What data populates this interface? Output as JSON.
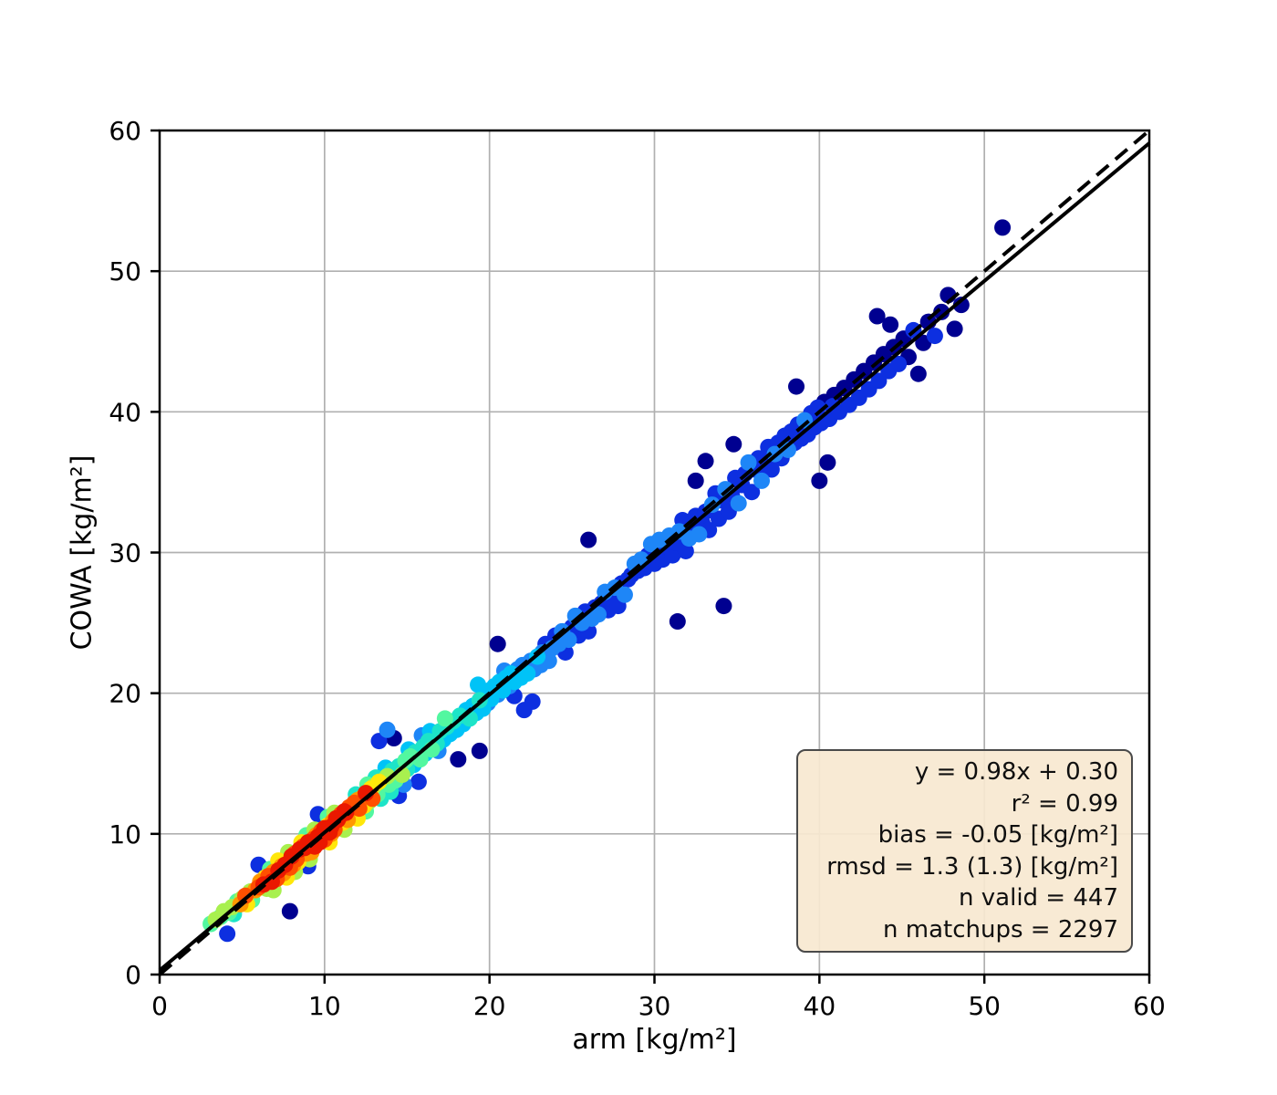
{
  "figure": {
    "title": "",
    "xlabel": "arm [kg/m²]",
    "ylabel": "COWA [kg/m²]"
  },
  "stats_box": {
    "lines": [
      "y = 0.98x + 0.30",
      "r² = 0.99",
      "bias = -0.05 [kg/m²]",
      "rmsd = 1.3 (1.3) [kg/m²]",
      "n valid = 447",
      "n matchups = 2297"
    ],
    "values": {
      "slope": 0.98,
      "intercept": 0.3,
      "r2": 0.99,
      "bias": -0.05,
      "rmsd": "1.3 (1.3)",
      "n_valid": 447,
      "n_matchups": 2297
    },
    "background": "#f5deb3",
    "border_color": "#4a4a4a"
  },
  "chart_data": {
    "type": "scatter",
    "title": "",
    "xlabel": "arm [kg/m²]",
    "ylabel": "COWA [kg/m²]",
    "xlim": [
      0,
      60
    ],
    "ylim": [
      0,
      60
    ],
    "xticks": [
      0,
      10,
      20,
      30,
      40,
      50,
      60
    ],
    "yticks": [
      0,
      10,
      20,
      30,
      40,
      50,
      60
    ],
    "grid": true,
    "grid_color": "#b0b0b0",
    "identity_line": {
      "style": "dashed",
      "color": "#000000",
      "from": [
        0,
        0
      ],
      "to": [
        60,
        60
      ]
    },
    "regression_line": {
      "style": "solid",
      "color": "#000000",
      "slope": 0.98,
      "intercept": 0.3
    },
    "color_meaning": "point color = matchup density, jet colormap (red = high density, dark blue = low density)",
    "palette": [
      "#000090",
      "#0d2fe0",
      "#1e86f7",
      "#00c3f7",
      "#1de4c8",
      "#52f7a0",
      "#a8f04f",
      "#ffe70a",
      "#ff9800",
      "#ff5000",
      "#ea1800"
    ],
    "points": [
      [
        3.1,
        3.6,
        5
      ],
      [
        3.4,
        3.9,
        6
      ],
      [
        3.7,
        4.1,
        5
      ],
      [
        3.9,
        4.5,
        6
      ],
      [
        4.1,
        2.9,
        1
      ],
      [
        4.2,
        4.4,
        5
      ],
      [
        4.4,
        4.8,
        6
      ],
      [
        4.5,
        4.3,
        4
      ],
      [
        4.7,
        5.2,
        5
      ],
      [
        4.9,
        5.0,
        8
      ],
      [
        5.0,
        5.4,
        6
      ],
      [
        5.2,
        5.6,
        9
      ],
      [
        5.3,
        5.0,
        7
      ],
      [
        5.5,
        5.9,
        6
      ],
      [
        5.6,
        5.3,
        5
      ],
      [
        5.8,
        6.0,
        8
      ],
      [
        6.0,
        7.8,
        1
      ],
      [
        6.0,
        6.2,
        9
      ],
      [
        6.1,
        6.6,
        8
      ],
      [
        6.3,
        6.4,
        10
      ],
      [
        6.4,
        6.9,
        7
      ],
      [
        6.5,
        6.1,
        6
      ],
      [
        6.6,
        7.0,
        9
      ],
      [
        6.7,
        7.5,
        5
      ],
      [
        6.8,
        6.6,
        10
      ],
      [
        6.9,
        6.0,
        6
      ],
      [
        6.9,
        7.3,
        8
      ],
      [
        7.0,
        7.6,
        5
      ],
      [
        7.1,
        6.8,
        9
      ],
      [
        7.2,
        7.4,
        10
      ],
      [
        7.2,
        8.1,
        7
      ],
      [
        7.3,
        7.9,
        7
      ],
      [
        7.4,
        7.7,
        8
      ],
      [
        7.5,
        7.2,
        8
      ],
      [
        7.6,
        7.8,
        10
      ],
      [
        7.7,
        6.9,
        7
      ],
      [
        7.7,
        8.3,
        6
      ],
      [
        7.8,
        8.7,
        6
      ],
      [
        7.9,
        4.5,
        0
      ],
      [
        7.9,
        7.6,
        9
      ],
      [
        8.0,
        8.4,
        10
      ],
      [
        8.1,
        7.8,
        8
      ],
      [
        8.2,
        7.3,
        6
      ],
      [
        8.2,
        8.6,
        9
      ],
      [
        8.3,
        8.2,
        9
      ],
      [
        8.4,
        8.0,
        7
      ],
      [
        8.5,
        8.9,
        10
      ],
      [
        8.6,
        8.3,
        5
      ],
      [
        8.6,
        9.4,
        7
      ],
      [
        8.7,
        9.1,
        9
      ],
      [
        8.8,
        9.0,
        10
      ],
      [
        8.9,
        8.6,
        8
      ],
      [
        8.9,
        9.9,
        5
      ],
      [
        9.0,
        7.7,
        1
      ],
      [
        9.0,
        9.4,
        10
      ],
      [
        9.1,
        8.2,
        6
      ],
      [
        9.1,
        8.9,
        7
      ],
      [
        9.2,
        8.7,
        8
      ],
      [
        9.2,
        9.3,
        10
      ],
      [
        9.3,
        9.6,
        9
      ],
      [
        9.4,
        9.1,
        10
      ],
      [
        9.4,
        10.3,
        6
      ],
      [
        9.5,
        9.9,
        8
      ],
      [
        9.6,
        9.8,
        10
      ],
      [
        9.6,
        11.4,
        1
      ],
      [
        9.7,
        9.4,
        10
      ],
      [
        9.8,
        10.2,
        9
      ],
      [
        9.9,
        9.7,
        6
      ],
      [
        9.9,
        10.1,
        10
      ],
      [
        10.0,
        9.6,
        9
      ],
      [
        10.0,
        10.4,
        10
      ],
      [
        10.1,
        9.9,
        9
      ],
      [
        10.2,
        10.6,
        7
      ],
      [
        10.2,
        11.2,
        5
      ],
      [
        10.3,
        9.4,
        7
      ],
      [
        10.3,
        10.1,
        10
      ],
      [
        10.4,
        10.0,
        8
      ],
      [
        10.4,
        10.5,
        10
      ],
      [
        10.5,
        10.9,
        8
      ],
      [
        10.6,
        10.3,
        9
      ],
      [
        10.6,
        11.5,
        6
      ],
      [
        10.7,
        11.1,
        10
      ],
      [
        10.8,
        11.0,
        10
      ],
      [
        10.9,
        10.6,
        5
      ],
      [
        10.9,
        11.2,
        9
      ],
      [
        11.0,
        11.4,
        9
      ],
      [
        11.1,
        10.8,
        7
      ],
      [
        11.2,
        10.3,
        6
      ],
      [
        11.2,
        11.6,
        10
      ],
      [
        11.3,
        11.5,
        10
      ],
      [
        11.4,
        11.0,
        8
      ],
      [
        11.5,
        11.9,
        9
      ],
      [
        11.6,
        11.3,
        6
      ],
      [
        11.7,
        11.9,
        8
      ],
      [
        11.8,
        12.2,
        9
      ],
      [
        11.9,
        11.5,
        7
      ],
      [
        11.9,
        12.8,
        4
      ],
      [
        12.0,
        11.1,
        7
      ],
      [
        12.0,
        12.4,
        8
      ],
      [
        12.1,
        11.8,
        9
      ],
      [
        12.2,
        12.5,
        8
      ],
      [
        12.3,
        12.6,
        6
      ],
      [
        12.4,
        12.0,
        7
      ],
      [
        12.5,
        11.6,
        5
      ],
      [
        12.5,
        12.9,
        10
      ],
      [
        12.6,
        13.5,
        5
      ],
      [
        12.7,
        12.3,
        6
      ],
      [
        12.8,
        13.2,
        7
      ],
      [
        12.9,
        12.5,
        9
      ],
      [
        13.0,
        13.4,
        6
      ],
      [
        13.1,
        14.0,
        4
      ],
      [
        13.2,
        12.8,
        5
      ],
      [
        13.3,
        13.7,
        7
      ],
      [
        13.3,
        16.6,
        1
      ],
      [
        13.4,
        12.5,
        4
      ],
      [
        13.6,
        13.1,
        4
      ],
      [
        13.7,
        14.7,
        3
      ],
      [
        13.8,
        14.1,
        6
      ],
      [
        13.8,
        17.4,
        2
      ],
      [
        13.9,
        13.5,
        5
      ],
      [
        14.0,
        13.0,
        4
      ],
      [
        14.1,
        14.5,
        4
      ],
      [
        14.2,
        16.8,
        0
      ],
      [
        14.3,
        13.8,
        5
      ],
      [
        14.5,
        12.7,
        1
      ],
      [
        14.5,
        14.8,
        4
      ],
      [
        14.7,
        14.2,
        6
      ],
      [
        14.8,
        13.5,
        2
      ],
      [
        14.9,
        15.2,
        5
      ],
      [
        15.0,
        14.6,
        4
      ],
      [
        15.1,
        16.0,
        3
      ],
      [
        15.2,
        15.5,
        5
      ],
      [
        15.4,
        14.9,
        3
      ],
      [
        15.5,
        15.8,
        4
      ],
      [
        15.7,
        13.7,
        1
      ],
      [
        15.8,
        15.3,
        5
      ],
      [
        15.9,
        17.0,
        2
      ],
      [
        16.0,
        16.2,
        4
      ],
      [
        16.1,
        15.7,
        3
      ],
      [
        16.3,
        16.6,
        4
      ],
      [
        16.4,
        17.3,
        3
      ],
      [
        16.5,
        16.0,
        5
      ],
      [
        16.7,
        16.9,
        3
      ],
      [
        16.8,
        16.4,
        4
      ],
      [
        16.9,
        15.9,
        2
      ],
      [
        17.0,
        17.3,
        4
      ],
      [
        17.2,
        16.7,
        3
      ],
      [
        17.3,
        18.2,
        5
      ],
      [
        17.4,
        17.6,
        4
      ],
      [
        17.6,
        17.1,
        3
      ],
      [
        17.8,
        18.0,
        4
      ],
      [
        18.0,
        17.4,
        3
      ],
      [
        18.1,
        15.3,
        0
      ],
      [
        18.2,
        18.4,
        4
      ],
      [
        18.4,
        17.8,
        3
      ],
      [
        18.6,
        18.8,
        3
      ],
      [
        18.8,
        18.2,
        4
      ],
      [
        19.0,
        19.1,
        3
      ],
      [
        19.2,
        18.6,
        3
      ],
      [
        19.3,
        20.6,
        3
      ],
      [
        19.4,
        15.9,
        0
      ],
      [
        19.4,
        19.5,
        4
      ],
      [
        19.6,
        18.9,
        3
      ],
      [
        19.8,
        19.9,
        3
      ],
      [
        19.9,
        19.3,
        2
      ],
      [
        20.0,
        20.2,
        3
      ],
      [
        20.1,
        19.6,
        3
      ],
      [
        20.3,
        20.5,
        3
      ],
      [
        20.5,
        19.9,
        2
      ],
      [
        20.5,
        23.5,
        0
      ],
      [
        20.6,
        20.8,
        3
      ],
      [
        20.8,
        20.2,
        3
      ],
      [
        20.9,
        21.6,
        2
      ],
      [
        21.0,
        21.1,
        3
      ],
      [
        21.2,
        20.5,
        2
      ],
      [
        21.3,
        21.4,
        3
      ],
      [
        21.5,
        19.8,
        1
      ],
      [
        21.5,
        20.8,
        3
      ],
      [
        21.7,
        21.7,
        2
      ],
      [
        21.9,
        21.1,
        3
      ],
      [
        22.0,
        22.0,
        2
      ],
      [
        22.1,
        18.8,
        1
      ],
      [
        22.3,
        21.4,
        3
      ],
      [
        22.5,
        22.3,
        2
      ],
      [
        22.6,
        19.4,
        1
      ],
      [
        22.7,
        21.7,
        2
      ],
      [
        22.9,
        22.6,
        3
      ],
      [
        23.1,
        22.0,
        2
      ],
      [
        23.2,
        22.9,
        2
      ],
      [
        23.4,
        23.5,
        1
      ],
      [
        23.6,
        22.3,
        2
      ],
      [
        23.8,
        23.2,
        2
      ],
      [
        24.0,
        24.1,
        1
      ],
      [
        24.2,
        23.5,
        2
      ],
      [
        24.4,
        24.4,
        2
      ],
      [
        24.6,
        22.9,
        1
      ],
      [
        24.8,
        23.8,
        2
      ],
      [
        25.0,
        24.7,
        1
      ],
      [
        25.2,
        25.5,
        2
      ],
      [
        25.4,
        24.1,
        1
      ],
      [
        25.6,
        25.0,
        2
      ],
      [
        25.8,
        25.8,
        1
      ],
      [
        26.0,
        24.4,
        1
      ],
      [
        26.0,
        30.9,
        0
      ],
      [
        26.2,
        25.3,
        2
      ],
      [
        26.4,
        26.1,
        1
      ],
      [
        26.6,
        25.6,
        2
      ],
      [
        26.8,
        26.4,
        1
      ],
      [
        27.0,
        27.2,
        2
      ],
      [
        27.2,
        25.9,
        1
      ],
      [
        27.4,
        26.7,
        1
      ],
      [
        27.6,
        27.5,
        2
      ],
      [
        27.8,
        26.2,
        1
      ],
      [
        28.0,
        27.8,
        1
      ],
      [
        28.2,
        27.0,
        2
      ],
      [
        28.4,
        28.1,
        1
      ],
      [
        28.6,
        28.4,
        1
      ],
      [
        28.8,
        29.2,
        2
      ],
      [
        29.0,
        28.7,
        1
      ],
      [
        29.2,
        29.5,
        2
      ],
      [
        29.4,
        28.9,
        1
      ],
      [
        29.6,
        29.8,
        1
      ],
      [
        29.8,
        30.6,
        2
      ],
      [
        30.0,
        29.2,
        1
      ],
      [
        30.1,
        30.1,
        1
      ],
      [
        30.3,
        30.9,
        2
      ],
      [
        30.5,
        29.5,
        1
      ],
      [
        30.7,
        30.4,
        1
      ],
      [
        30.9,
        31.2,
        2
      ],
      [
        31.1,
        29.8,
        1
      ],
      [
        31.3,
        30.7,
        1
      ],
      [
        31.4,
        25.1,
        0
      ],
      [
        31.5,
        31.5,
        2
      ],
      [
        31.7,
        32.3,
        1
      ],
      [
        31.9,
        30.1,
        1
      ],
      [
        32.1,
        31.0,
        2
      ],
      [
        32.3,
        31.8,
        1
      ],
      [
        32.5,
        32.6,
        1
      ],
      [
        32.5,
        35.1,
        0
      ],
      [
        32.7,
        31.3,
        2
      ],
      [
        32.9,
        32.1,
        1
      ],
      [
        33.1,
        32.9,
        1
      ],
      [
        33.1,
        36.5,
        0
      ],
      [
        33.3,
        31.6,
        1
      ],
      [
        33.5,
        33.4,
        2
      ],
      [
        33.7,
        34.2,
        1
      ],
      [
        33.9,
        32.4,
        1
      ],
      [
        34.1,
        33.7,
        1
      ],
      [
        34.2,
        26.2,
        0
      ],
      [
        34.3,
        34.5,
        2
      ],
      [
        34.5,
        32.9,
        1
      ],
      [
        34.7,
        34.0,
        1
      ],
      [
        34.8,
        37.7,
        0
      ],
      [
        34.9,
        35.3,
        1
      ],
      [
        35.1,
        33.5,
        2
      ],
      [
        35.3,
        34.8,
        1
      ],
      [
        35.5,
        35.6,
        1
      ],
      [
        35.7,
        36.4,
        2
      ],
      [
        35.9,
        34.3,
        1
      ],
      [
        36.1,
        35.9,
        1
      ],
      [
        36.3,
        36.7,
        1
      ],
      [
        36.5,
        35.1,
        2
      ],
      [
        36.7,
        36.2,
        1
      ],
      [
        36.9,
        37.5,
        1
      ],
      [
        37.1,
        35.9,
        1
      ],
      [
        37.3,
        37.0,
        2
      ],
      [
        37.5,
        37.8,
        1
      ],
      [
        37.7,
        36.7,
        1
      ],
      [
        37.9,
        38.3,
        1
      ],
      [
        38.1,
        37.3,
        2
      ],
      [
        38.3,
        38.6,
        1
      ],
      [
        38.5,
        37.8,
        1
      ],
      [
        38.6,
        41.8,
        0
      ],
      [
        38.7,
        39.1,
        1
      ],
      [
        38.9,
        38.1,
        1
      ],
      [
        39.1,
        39.4,
        2
      ],
      [
        39.3,
        38.4,
        1
      ],
      [
        39.5,
        39.9,
        1
      ],
      [
        39.7,
        38.9,
        1
      ],
      [
        39.9,
        40.3,
        1
      ],
      [
        40.0,
        35.1,
        0
      ],
      [
        40.1,
        39.2,
        1
      ],
      [
        40.3,
        40.7,
        0
      ],
      [
        40.5,
        36.4,
        0
      ],
      [
        40.6,
        39.5,
        1
      ],
      [
        40.8,
        40.4,
        1
      ],
      [
        40.9,
        41.2,
        0
      ],
      [
        41.2,
        40.0,
        1
      ],
      [
        41.5,
        41.7,
        0
      ],
      [
        41.8,
        40.5,
        1
      ],
      [
        42.1,
        42.3,
        0
      ],
      [
        42.4,
        41.0,
        1
      ],
      [
        42.7,
        42.9,
        0
      ],
      [
        43.0,
        41.6,
        1
      ],
      [
        43.3,
        43.5,
        0
      ],
      [
        43.5,
        46.8,
        0
      ],
      [
        43.6,
        42.2,
        1
      ],
      [
        43.9,
        44.1,
        0
      ],
      [
        44.2,
        42.9,
        1
      ],
      [
        44.3,
        46.2,
        0
      ],
      [
        44.5,
        44.6,
        0
      ],
      [
        44.8,
        43.4,
        1
      ],
      [
        45.1,
        45.2,
        0
      ],
      [
        45.4,
        43.9,
        0
      ],
      [
        45.7,
        45.8,
        1
      ],
      [
        46.0,
        42.7,
        0
      ],
      [
        46.3,
        44.9,
        0
      ],
      [
        46.6,
        46.4,
        0
      ],
      [
        47.0,
        45.4,
        1
      ],
      [
        47.4,
        47.1,
        0
      ],
      [
        47.8,
        48.3,
        0
      ],
      [
        48.2,
        45.9,
        0
      ],
      [
        48.6,
        47.6,
        0
      ],
      [
        51.1,
        53.1,
        0
      ]
    ]
  }
}
